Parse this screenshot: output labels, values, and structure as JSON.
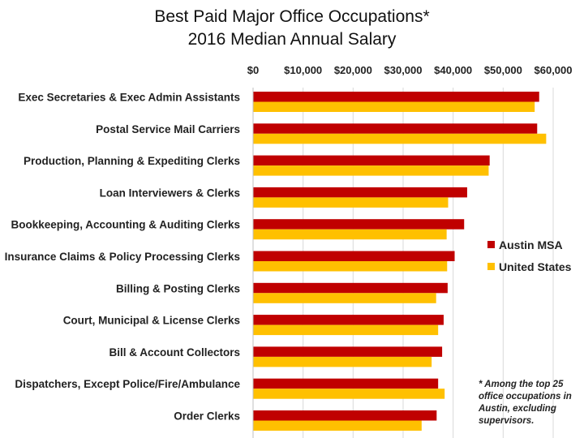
{
  "chart_data": {
    "type": "bar",
    "orientation": "horizontal",
    "title": "Best Paid Major Office Occupations*",
    "subtitle": "2016 Median Annual Salary",
    "xlim": [
      0,
      60000
    ],
    "x_ticks": [
      "$0",
      "$10,000",
      "$20,000",
      "$30,000",
      "$40,000",
      "$50,000",
      "$60,000"
    ],
    "x_tick_values": [
      0,
      10000,
      20000,
      30000,
      40000,
      50000,
      60000
    ],
    "x_axis_position": "top",
    "grid": true,
    "legend_position": "right",
    "categories": [
      "Exec Secretaries & Exec Admin Assistants",
      "Postal Service Mail Carriers",
      "Production, Planning & Expediting Clerks",
      "Loan Interviewers & Clerks",
      "Bookkeeping, Accounting & Auditing Clerks",
      "Insurance Claims & Policy Processing Clerks",
      "Billing & Posting Clerks",
      "Court, Municipal & License Clerks",
      "Bill & Account Collectors",
      "Dispatchers, Except Police/Fire/Ambulance",
      "Order Clerks"
    ],
    "series": [
      {
        "name": "Austin MSA",
        "color": "#c00000",
        "values": [
          57200,
          56800,
          47300,
          42800,
          42200,
          40300,
          38900,
          38100,
          37800,
          37000,
          36700
        ]
      },
      {
        "name": "United States",
        "color": "#ffc000",
        "values": [
          56300,
          58600,
          47100,
          39000,
          38700,
          38800,
          36600,
          37000,
          35700,
          38300,
          33700
        ]
      }
    ],
    "note": "* Among the top 25 office occupations in Austin, excluding supervisors."
  }
}
